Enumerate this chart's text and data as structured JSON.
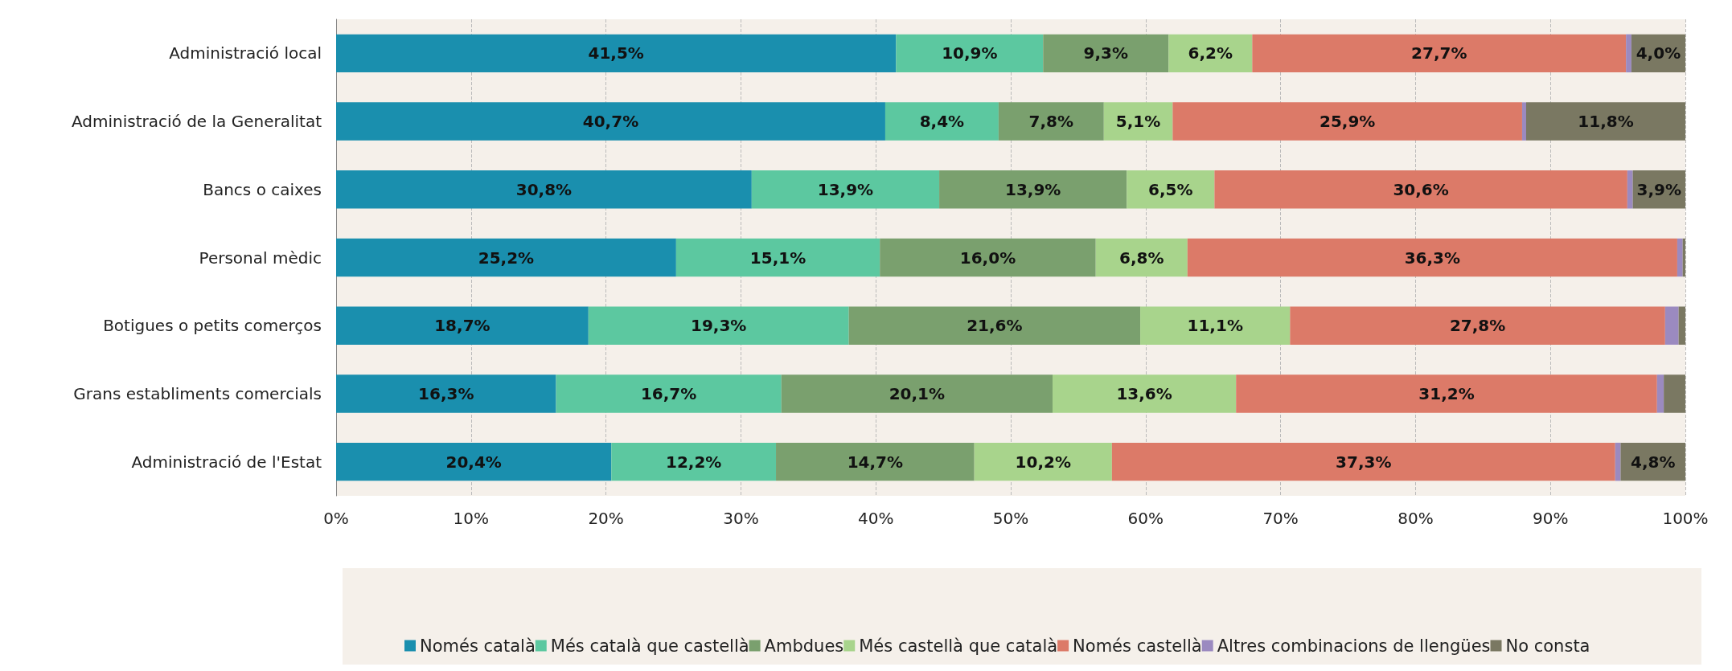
{
  "chart_data": {
    "type": "bar",
    "orientation": "horizontal",
    "stacked": true,
    "categories": [
      "Administració local",
      "Administració de la Generalitat",
      "Bancs o caixes",
      "Personal mèdic",
      "Botigues o petits comerços",
      "Grans establiments comercials",
      "Administració de l'Estat"
    ],
    "series": [
      {
        "name": "Només català",
        "color": "#1a8fae",
        "values": [
          41.5,
          40.7,
          30.8,
          25.2,
          18.7,
          16.3,
          20.4
        ],
        "value_labels": [
          "41,5%",
          "40,7%",
          "30,8%",
          "25,2%",
          "18,7%",
          "16,3%",
          "20,4%"
        ]
      },
      {
        "name": "Més català que castellà",
        "color": "#5cc8a0",
        "values": [
          10.9,
          8.4,
          13.9,
          15.1,
          19.3,
          16.7,
          12.2
        ],
        "value_labels": [
          "10,9%",
          "8,4%",
          "13,9%",
          "15,1%",
          "19,3%",
          "16,7%",
          "12,2%"
        ]
      },
      {
        "name": "Ambdues",
        "color": "#7aa06e",
        "values": [
          9.3,
          7.8,
          13.9,
          16.0,
          21.6,
          20.1,
          14.7
        ],
        "value_labels": [
          "9,3%",
          "7,8%",
          "13,9%",
          "16,0%",
          "21,6%",
          "20,1%",
          "14,7%"
        ]
      },
      {
        "name": "Més castellà que català",
        "color": "#a8d48c",
        "values": [
          6.2,
          5.1,
          6.5,
          6.8,
          11.1,
          13.6,
          10.2
        ],
        "value_labels": [
          "6,2%",
          "5,1%",
          "6,5%",
          "6,8%",
          "11,1%",
          "13,6%",
          "10,2%"
        ]
      },
      {
        "name": "Només castellà",
        "color": "#dc7a68",
        "values": [
          27.7,
          25.9,
          30.6,
          36.3,
          27.8,
          31.2,
          37.3
        ],
        "value_labels": [
          "27,7%",
          "25,9%",
          "30,6%",
          "36,3%",
          "27,8%",
          "31,2%",
          "37,3%"
        ]
      },
      {
        "name": "Altres combinacions de llengües",
        "color": "#9b8ac0",
        "values": [
          0.4,
          0.3,
          0.4,
          0.4,
          1.0,
          0.5,
          0.4
        ],
        "value_labels": [
          null,
          null,
          null,
          null,
          null,
          null,
          null
        ]
      },
      {
        "name": "No consta",
        "color": "#7a7862",
        "values": [
          4.0,
          11.8,
          3.9,
          0.2,
          0.5,
          1.6,
          4.8
        ],
        "value_labels": [
          "4,0%",
          "11,8%",
          "3,9%",
          null,
          null,
          null,
          "4,8%"
        ]
      }
    ],
    "xlim": [
      0,
      100
    ],
    "xticks": [
      {
        "value": 0,
        "label": "0%"
      },
      {
        "value": 10,
        "label": "10%"
      },
      {
        "value": 20,
        "label": "20%"
      },
      {
        "value": 30,
        "label": "30%"
      },
      {
        "value": 40,
        "label": "40%"
      },
      {
        "value": 50,
        "label": "50%"
      },
      {
        "value": 60,
        "label": "60%"
      },
      {
        "value": 70,
        "label": "70%"
      },
      {
        "value": 80,
        "label": "80%"
      },
      {
        "value": 90,
        "label": "90%"
      },
      {
        "value": 100,
        "label": "100%"
      }
    ],
    "grid": "x",
    "legend": "bottom"
  }
}
